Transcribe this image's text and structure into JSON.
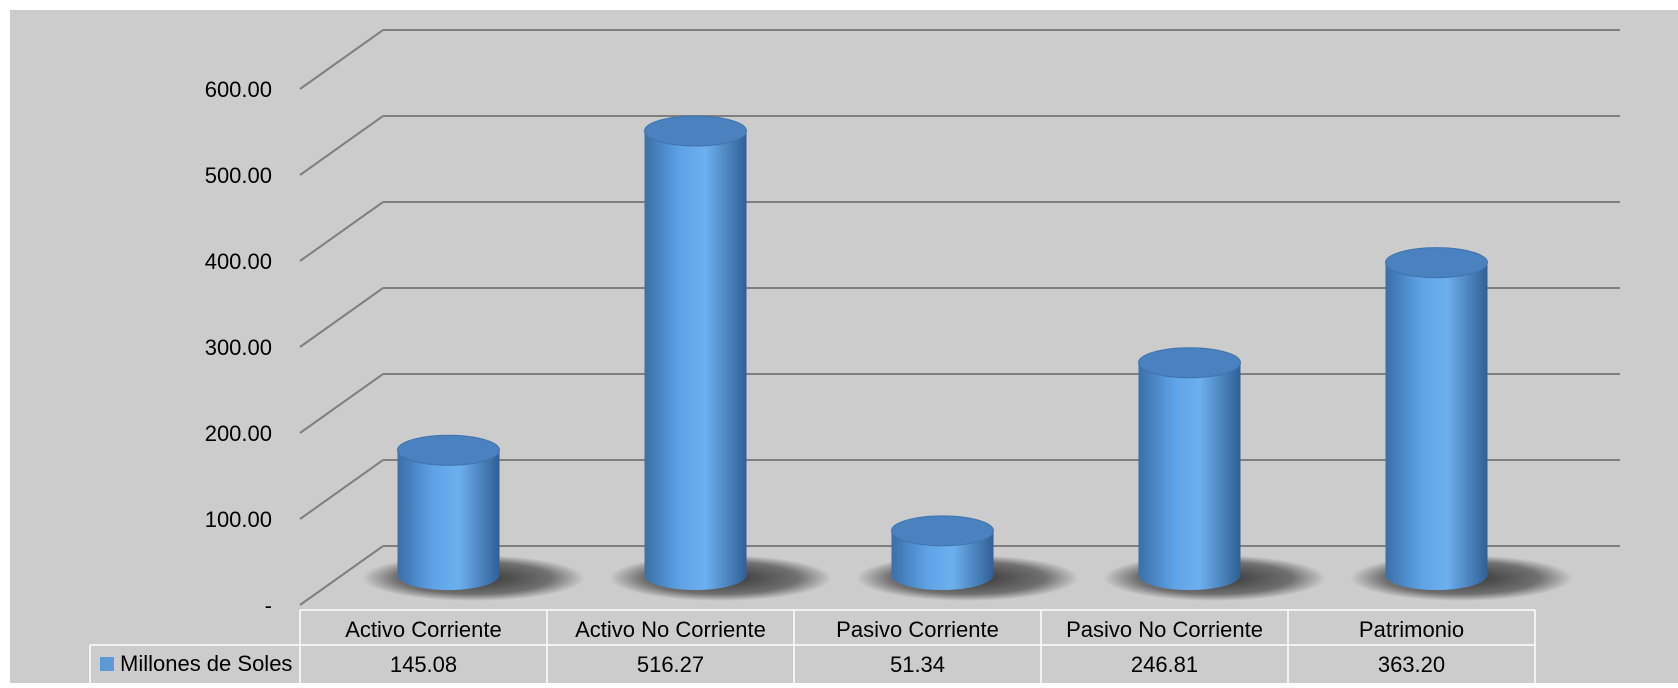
{
  "chart_data": {
    "type": "bar",
    "style": "3d-cylinder",
    "categories": [
      "Activo Corriente",
      "Activo No Corriente",
      "Pasivo Corriente",
      "Pasivo No Corriente",
      "Patrimonio"
    ],
    "series": [
      {
        "name": "Millones de Soles",
        "values": [
          145.08,
          516.27,
          51.34,
          246.81,
          363.2
        ],
        "color": "#5b9bd5"
      }
    ],
    "value_labels": [
      "145.08",
      "516.27",
      "51.34",
      "246.81",
      "363.20"
    ],
    "ylim": [
      0,
      600
    ],
    "y_ticks": [
      0,
      100,
      200,
      300,
      400,
      500,
      600
    ],
    "y_tick_labels": [
      "-",
      "100.00",
      "200.00",
      "300.00",
      "400.00",
      "500.00",
      "600.00"
    ],
    "grid": true,
    "data_table": true,
    "legend_position": "in data table",
    "colors": {
      "background": "#cccccc",
      "gridline": "#7f7f7f",
      "bar": "#5b9bd5",
      "bar_dark": "#3a6fa8",
      "bar_light": "#7ab4ea",
      "table_border": "#ffffff"
    }
  }
}
